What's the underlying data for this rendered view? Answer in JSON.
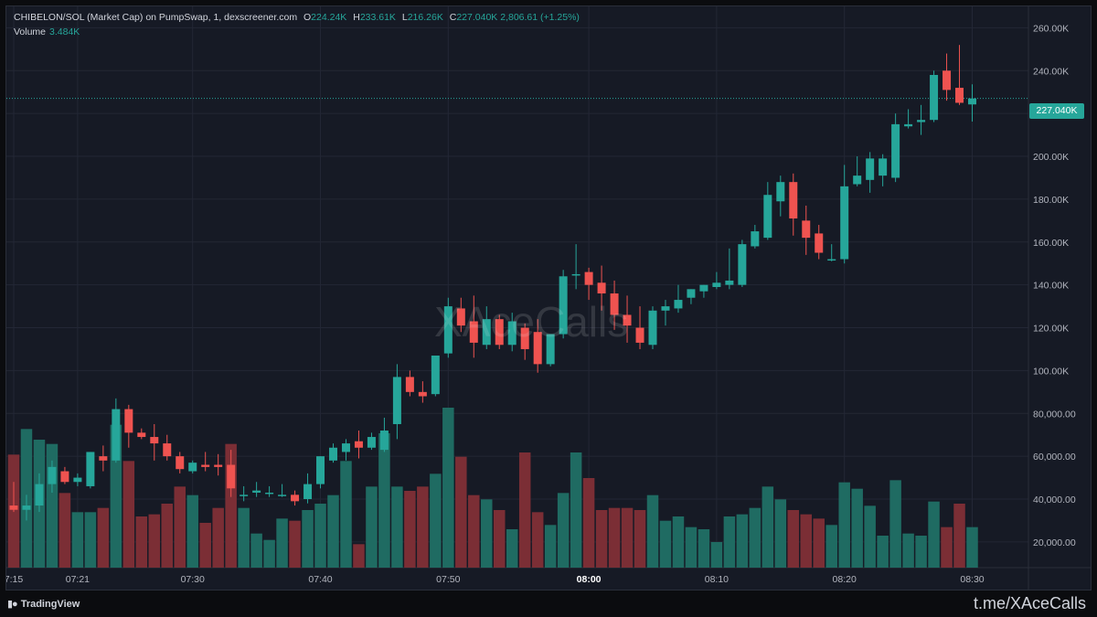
{
  "legend": {
    "symbol": "CHIBELON/SOL (Market Cap) on PumpSwap, 1, dexscreener.com",
    "o_label": "O",
    "o_value": "224.24K",
    "h_label": "H",
    "h_value": "233.61K",
    "l_label": "L",
    "l_value": "216.26K",
    "c_label": "C",
    "c_value": "227.040K",
    "change": "2,806.61 (+1.25%)",
    "volume_label": "Volume",
    "volume_value": "3.484K"
  },
  "watermark": "XAceCalls",
  "last_price_label": "227.040K",
  "footer": {
    "brand": "TradingView",
    "link": "t.me/XAceCalls"
  },
  "colors": {
    "up": "#26a69a",
    "down": "#ef5350",
    "up_vol": "#1f6b62",
    "down_vol": "#7b2e35",
    "background": "#161a25",
    "grid": "#232735"
  },
  "chart_data": {
    "type": "candlestick",
    "price_axis": {
      "range": [
        8000,
        270000
      ],
      "ticks": [
        20000,
        40000,
        60000,
        80000,
        100000,
        120000,
        140000,
        160000,
        180000,
        200000,
        220000,
        240000,
        260000
      ],
      "tick_labels": [
        "20,000.00",
        "40,000.00",
        "60,000.00",
        "80,000.00",
        "100.00K",
        "120.00K",
        "140.00K",
        "160.00K",
        "180.00K",
        "200.00K",
        "220.00K",
        "240.00K",
        "260.00K"
      ]
    },
    "time_axis": {
      "ticks": [
        0,
        5,
        14,
        24,
        34,
        45,
        55,
        65,
        75
      ],
      "tick_labels": [
        "7:15",
        "07:21",
        "07:30",
        "07:40",
        "07:50",
        "08:00",
        "08:10",
        "08:20",
        "08:30"
      ]
    },
    "last_price": 227040,
    "volume_max": 75000,
    "candles": [
      {
        "o": 37000,
        "h": 48000,
        "l": 34000,
        "c": 35000,
        "v": 53000
      },
      {
        "o": 35000,
        "h": 42000,
        "l": 30000,
        "c": 37000,
        "v": 65000
      },
      {
        "o": 37000,
        "h": 52000,
        "l": 34000,
        "c": 47000,
        "v": 60000
      },
      {
        "o": 47000,
        "h": 58000,
        "l": 43000,
        "c": 55000,
        "v": 58000
      },
      {
        "o": 53000,
        "h": 55000,
        "l": 47000,
        "c": 48000,
        "v": 35000
      },
      {
        "o": 48000,
        "h": 52000,
        "l": 46000,
        "c": 50000,
        "v": 26000
      },
      {
        "o": 46000,
        "h": 62000,
        "l": 45000,
        "c": 62000,
        "v": 26000
      },
      {
        "o": 60000,
        "h": 65000,
        "l": 53000,
        "c": 58000,
        "v": 28000
      },
      {
        "o": 58000,
        "h": 87000,
        "l": 57000,
        "c": 82000,
        "v": 67000
      },
      {
        "o": 82000,
        "h": 84000,
        "l": 64000,
        "c": 71000,
        "v": 50000
      },
      {
        "o": 71000,
        "h": 73000,
        "l": 68000,
        "c": 69000,
        "v": 24000
      },
      {
        "o": 69000,
        "h": 75000,
        "l": 58000,
        "c": 66000,
        "v": 25000
      },
      {
        "o": 66000,
        "h": 70000,
        "l": 58000,
        "c": 60000,
        "v": 30000
      },
      {
        "o": 60000,
        "h": 62000,
        "l": 52000,
        "c": 54000,
        "v": 38000
      },
      {
        "o": 53000,
        "h": 58000,
        "l": 52000,
        "c": 57000,
        "v": 34000
      },
      {
        "o": 56000,
        "h": 62000,
        "l": 53000,
        "c": 55000,
        "v": 21000
      },
      {
        "o": 56000,
        "h": 61000,
        "l": 51000,
        "c": 55000,
        "v": 28000
      },
      {
        "o": 56000,
        "h": 63000,
        "l": 41000,
        "c": 45000,
        "v": 58000
      },
      {
        "o": 42000,
        "h": 46000,
        "l": 39000,
        "c": 42000,
        "v": 28000
      },
      {
        "o": 43000,
        "h": 48000,
        "l": 41000,
        "c": 44000,
        "v": 16000
      },
      {
        "o": 43000,
        "h": 46000,
        "l": 41000,
        "c": 43000,
        "v": 13000
      },
      {
        "o": 42000,
        "h": 47000,
        "l": 41000,
        "c": 42000,
        "v": 23000
      },
      {
        "o": 42000,
        "h": 44000,
        "l": 37000,
        "c": 39000,
        "v": 22000
      },
      {
        "o": 40000,
        "h": 52000,
        "l": 38000,
        "c": 47000,
        "v": 27000
      },
      {
        "o": 47000,
        "h": 60000,
        "l": 45000,
        "c": 60000,
        "v": 30000
      },
      {
        "o": 58000,
        "h": 66000,
        "l": 57000,
        "c": 64000,
        "v": 34000
      },
      {
        "o": 62000,
        "h": 68000,
        "l": 58000,
        "c": 66000,
        "v": 50000
      },
      {
        "o": 67000,
        "h": 72000,
        "l": 59000,
        "c": 64000,
        "v": 11000
      },
      {
        "o": 64000,
        "h": 71000,
        "l": 63000,
        "c": 69000,
        "v": 38000
      },
      {
        "o": 63000,
        "h": 78000,
        "l": 62000,
        "c": 72000,
        "v": 63000
      },
      {
        "o": 75000,
        "h": 103000,
        "l": 68000,
        "c": 97000,
        "v": 38000
      },
      {
        "o": 97000,
        "h": 100000,
        "l": 88000,
        "c": 90000,
        "v": 36000
      },
      {
        "o": 90000,
        "h": 95000,
        "l": 85000,
        "c": 88000,
        "v": 38000
      },
      {
        "o": 89000,
        "h": 106000,
        "l": 88000,
        "c": 107000,
        "v": 44000
      },
      {
        "o": 108000,
        "h": 134000,
        "l": 106000,
        "c": 130000,
        "v": 75000
      },
      {
        "o": 129000,
        "h": 134000,
        "l": 118000,
        "c": 121000,
        "v": 52000
      },
      {
        "o": 123000,
        "h": 135000,
        "l": 106000,
        "c": 113000,
        "v": 34000
      },
      {
        "o": 112000,
        "h": 130000,
        "l": 110000,
        "c": 124000,
        "v": 32000
      },
      {
        "o": 124000,
        "h": 126000,
        "l": 110000,
        "c": 112000,
        "v": 27000
      },
      {
        "o": 112000,
        "h": 127000,
        "l": 109000,
        "c": 123000,
        "v": 18000
      },
      {
        "o": 120000,
        "h": 122000,
        "l": 105000,
        "c": 110000,
        "v": 54000
      },
      {
        "o": 118000,
        "h": 124000,
        "l": 99000,
        "c": 103000,
        "v": 26000
      },
      {
        "o": 103000,
        "h": 116000,
        "l": 102000,
        "c": 117000,
        "v": 20000
      },
      {
        "o": 117000,
        "h": 147000,
        "l": 115000,
        "c": 144000,
        "v": 35000
      },
      {
        "o": 145000,
        "h": 159000,
        "l": 138000,
        "c": 145000,
        "v": 54000
      },
      {
        "o": 146000,
        "h": 148000,
        "l": 133000,
        "c": 140000,
        "v": 42000
      },
      {
        "o": 141000,
        "h": 149000,
        "l": 128000,
        "c": 136000,
        "v": 27000
      },
      {
        "o": 136000,
        "h": 142000,
        "l": 119000,
        "c": 126000,
        "v": 28000
      },
      {
        "o": 126000,
        "h": 135000,
        "l": 113000,
        "c": 121000,
        "v": 28000
      },
      {
        "o": 120000,
        "h": 130000,
        "l": 110000,
        "c": 113000,
        "v": 27000
      },
      {
        "o": 112000,
        "h": 130000,
        "l": 110000,
        "c": 128000,
        "v": 34000
      },
      {
        "o": 128000,
        "h": 133000,
        "l": 121000,
        "c": 130000,
        "v": 22000
      },
      {
        "o": 129000,
        "h": 140000,
        "l": 127000,
        "c": 133000,
        "v": 24000
      },
      {
        "o": 134000,
        "h": 138000,
        "l": 131000,
        "c": 138000,
        "v": 19000
      },
      {
        "o": 137000,
        "h": 140000,
        "l": 134000,
        "c": 140000,
        "v": 18000
      },
      {
        "o": 139000,
        "h": 146000,
        "l": 138000,
        "c": 141000,
        "v": 12000
      },
      {
        "o": 140000,
        "h": 157000,
        "l": 138000,
        "c": 142000,
        "v": 24000
      },
      {
        "o": 140000,
        "h": 161000,
        "l": 139000,
        "c": 159000,
        "v": 25000
      },
      {
        "o": 158000,
        "h": 168000,
        "l": 157000,
        "c": 165000,
        "v": 28000
      },
      {
        "o": 162000,
        "h": 188000,
        "l": 161000,
        "c": 182000,
        "v": 38000
      },
      {
        "o": 179000,
        "h": 191000,
        "l": 172000,
        "c": 188000,
        "v": 32000
      },
      {
        "o": 188000,
        "h": 192000,
        "l": 163000,
        "c": 171000,
        "v": 27000
      },
      {
        "o": 170000,
        "h": 177000,
        "l": 154000,
        "c": 162000,
        "v": 25000
      },
      {
        "o": 164000,
        "h": 168000,
        "l": 152000,
        "c": 155000,
        "v": 23000
      },
      {
        "o": 152000,
        "h": 159000,
        "l": 151000,
        "c": 152000,
        "v": 20000
      },
      {
        "o": 152000,
        "h": 196000,
        "l": 150000,
        "c": 186000,
        "v": 40000
      },
      {
        "o": 187000,
        "h": 200000,
        "l": 186000,
        "c": 191000,
        "v": 37000
      },
      {
        "o": 189000,
        "h": 202000,
        "l": 183000,
        "c": 199000,
        "v": 29000
      },
      {
        "o": 191000,
        "h": 201000,
        "l": 186000,
        "c": 199000,
        "v": 15000
      },
      {
        "o": 190000,
        "h": 220000,
        "l": 188000,
        "c": 215000,
        "v": 41000
      },
      {
        "o": 214000,
        "h": 222000,
        "l": 213000,
        "c": 215000,
        "v": 16000
      },
      {
        "o": 216000,
        "h": 224000,
        "l": 210000,
        "c": 217000,
        "v": 15000
      },
      {
        "o": 217000,
        "h": 240000,
        "l": 216000,
        "c": 238000,
        "v": 31000
      },
      {
        "o": 240000,
        "h": 248000,
        "l": 226000,
        "c": 231000,
        "v": 19000
      },
      {
        "o": 232000,
        "h": 252000,
        "l": 224000,
        "c": 225000,
        "v": 30000
      },
      {
        "o": 224240,
        "h": 233610,
        "l": 216260,
        "c": 227040,
        "v": 19000
      }
    ]
  }
}
